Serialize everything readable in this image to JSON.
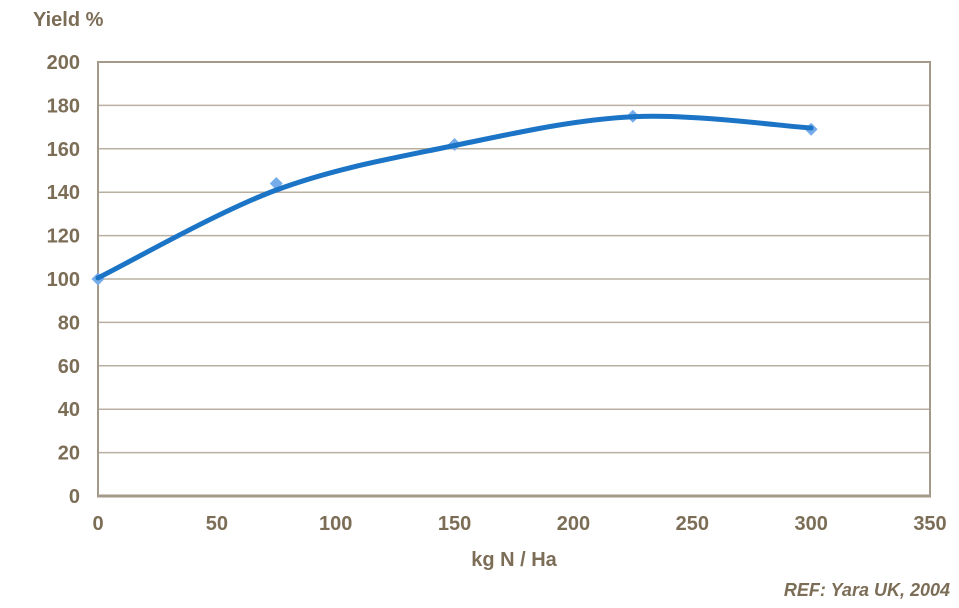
{
  "chart_data": {
    "type": "scatter",
    "title": "",
    "ylabel": "Yield %",
    "xlabel": "kg N / Ha",
    "ref_note": "REF: Yara UK, 2004",
    "xlim": [
      0,
      350
    ],
    "ylim": [
      0,
      200
    ],
    "x_ticks": [
      0,
      50,
      100,
      150,
      200,
      250,
      300,
      350
    ],
    "y_ticks": [
      0,
      20,
      40,
      60,
      80,
      100,
      120,
      140,
      160,
      180,
      200
    ],
    "points": [
      [
        0,
        100
      ],
      [
        75,
        144
      ],
      [
        150,
        162
      ],
      [
        225,
        175
      ],
      [
        300,
        169
      ]
    ],
    "trend": [
      [
        0,
        100.5
      ],
      [
        75,
        141
      ],
      [
        150,
        161.5
      ],
      [
        225,
        174.8
      ],
      [
        300,
        169.6
      ]
    ],
    "grid": "horizontal",
    "legend": "none",
    "colors": {
      "line": "#1b74c5",
      "marker": "#76ace9",
      "text": "#7c6d57",
      "grid": "#b8afa1",
      "frame": "#a49a89"
    }
  }
}
